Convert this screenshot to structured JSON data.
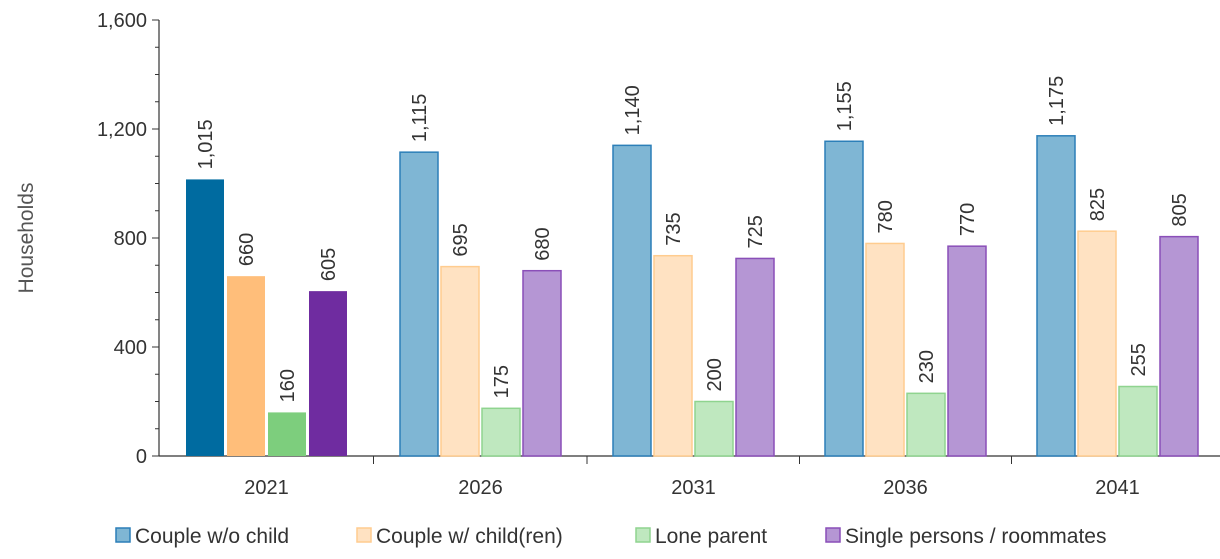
{
  "chart_data": {
    "type": "bar",
    "categories": [
      "2021",
      "2026",
      "2031",
      "2036",
      "2041"
    ],
    "series": [
      {
        "name": "Couple w/o child",
        "values": [
          1015,
          1115,
          1140,
          1155,
          1175
        ],
        "labels": [
          "1,015",
          "1,115",
          "1,140",
          "1,155",
          "1,175"
        ],
        "color": "#006ba0",
        "light_color": "#7fb6d4",
        "edge_color": "#2c7fb8"
      },
      {
        "name": "Couple w/ child(ren)",
        "values": [
          660,
          695,
          735,
          780,
          825
        ],
        "labels": [
          "660",
          "695",
          "735",
          "780",
          "825"
        ],
        "color": "#ffbe7a",
        "light_color": "#ffe2c2",
        "edge_color": "#ffcc8f"
      },
      {
        "name": "Lone parent",
        "values": [
          160,
          175,
          200,
          230,
          255
        ],
        "labels": [
          "160",
          "175",
          "200",
          "230",
          "255"
        ],
        "color": "#7dce7d",
        "light_color": "#bfe8bf",
        "edge_color": "#8fd48f"
      },
      {
        "name": "Single persons / roommates",
        "values": [
          605,
          680,
          725,
          770,
          805
        ],
        "labels": [
          "605",
          "680",
          "725",
          "770",
          "805"
        ],
        "color": "#6f2ca0",
        "light_color": "#b596d4",
        "edge_color": "#8a4fb8"
      }
    ],
    "ylabel": "Households",
    "xlabel": "",
    "ylim": [
      0,
      1600
    ],
    "yticks": [
      0,
      400,
      800,
      1200,
      1600
    ],
    "ytick_labels": [
      "0",
      "400",
      "800",
      "1,200",
      "1,600"
    ],
    "minor_tick_step": 100,
    "grid": false,
    "legend_position": "bottom",
    "first_category_solid": true
  }
}
